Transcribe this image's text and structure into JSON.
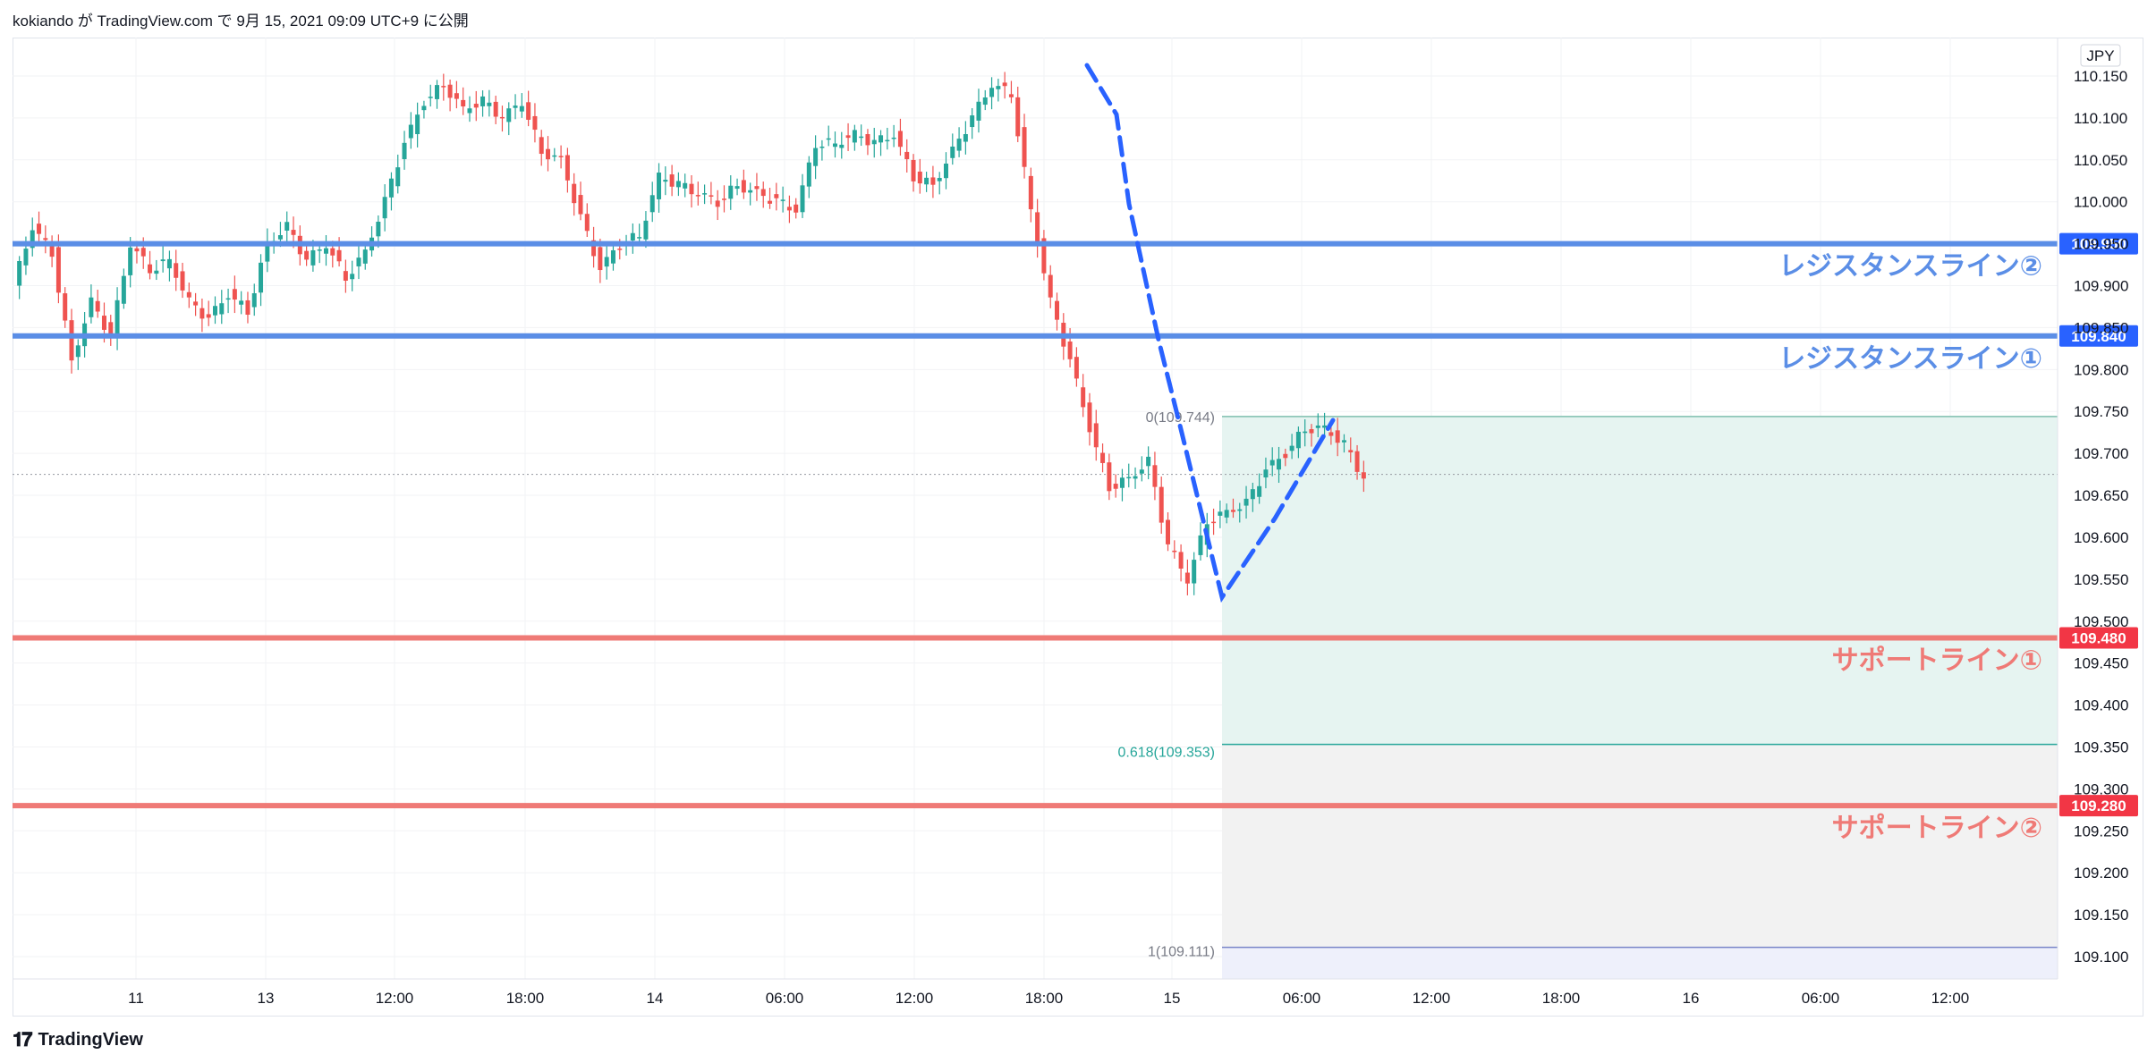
{
  "header": {
    "text": "kokiando が TradingView.com で 9月 15, 2021 09:09 UTC+9 に公開"
  },
  "footer": {
    "brand": "TradingView",
    "logo_icon": "tradingview-logo-icon"
  },
  "chart_data": {
    "type": "candlestick",
    "currency_label": "JPY",
    "ylim": [
      109.07,
      110.18
    ],
    "y_ticks": [
      "110.150",
      "110.100",
      "110.050",
      "110.000",
      "109.950",
      "109.900",
      "109.850",
      "109.800",
      "109.750",
      "109.700",
      "109.650",
      "109.600",
      "109.550",
      "109.500",
      "109.450",
      "109.400",
      "109.350",
      "109.300",
      "109.250",
      "109.200",
      "109.150",
      "109.100"
    ],
    "x_ticks": [
      "11",
      "13",
      "12:00",
      "18:00",
      "14",
      "06:00",
      "12:00",
      "18:00",
      "15",
      "06:00",
      "12:00",
      "18:00",
      "16",
      "06:00",
      "12:00"
    ],
    "colors": {
      "up": "#26a69a",
      "down": "#ef5350",
      "resistance": "#5b8ee6",
      "support": "#ef7a76",
      "fib_zone_upper": "#e6f4f1",
      "fib_zone_lower": "#f2f2f2",
      "fib_zone_bottom": "#eef0fb",
      "dash_line": "#2962ff"
    },
    "price_path": [
      109.9,
      109.97,
      109.94,
      109.81,
      109.88,
      109.84,
      109.95,
      109.92,
      109.93,
      109.88,
      109.86,
      109.89,
      109.87,
      109.95,
      109.97,
      109.93,
      109.95,
      109.91,
      109.94,
      110.0,
      110.07,
      110.12,
      110.14,
      110.11,
      110.12,
      110.1,
      110.12,
      110.06,
      110.05,
      109.98,
      109.92,
      109.95,
      109.96,
      110.03,
      110.02,
      110.01,
      110.0,
      110.02,
      110.01,
      110.0,
      109.99,
      110.07,
      110.07,
      110.08,
      110.07,
      110.08,
      110.03,
      110.02,
      110.06,
      110.1,
      110.14,
      110.13,
      109.99,
      109.88,
      109.81,
      109.73,
      109.66,
      109.67,
      109.69,
      109.59,
      109.55,
      109.62,
      109.63,
      109.64,
      109.68,
      109.7,
      109.73,
      109.73,
      109.71,
      109.67
    ],
    "lines": [
      {
        "name": "レジスタンスライン②",
        "price": 109.95,
        "tag": "109.950",
        "kind": "resistance"
      },
      {
        "name": "レジスタンスライン①",
        "price": 109.84,
        "tag": "109.840",
        "kind": "resistance"
      },
      {
        "name": "サポートライン①",
        "price": 109.48,
        "tag": "109.480",
        "kind": "support"
      },
      {
        "name": "サポートライン②",
        "price": 109.28,
        "tag": "109.280",
        "kind": "support"
      }
    ],
    "fib_levels": [
      {
        "label": "0(109.744)",
        "price": 109.744
      },
      {
        "label": "0.618(109.353)",
        "price": 109.353
      },
      {
        "label": "1(109.111)",
        "price": 109.111
      }
    ],
    "last_price_dotted": 109.675
  }
}
